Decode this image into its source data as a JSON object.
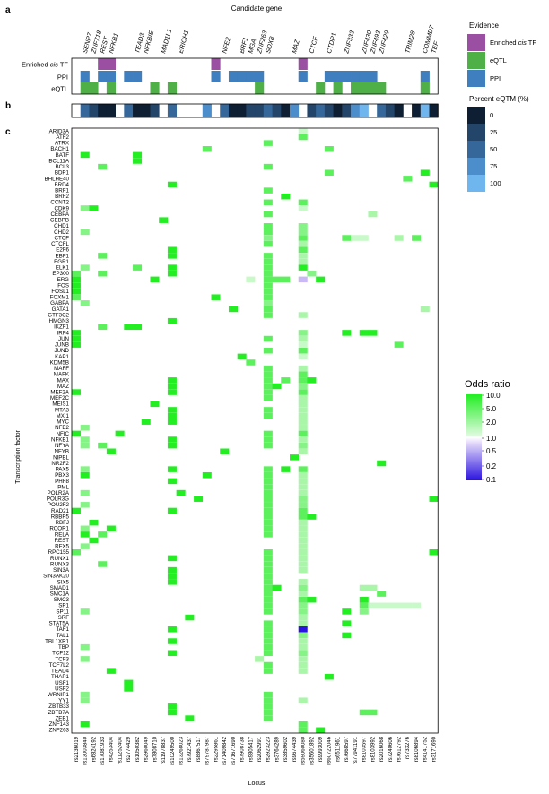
{
  "panel_labels": {
    "a": "a",
    "b": "b",
    "c": "c"
  },
  "top_axis_title": "Candidate gene",
  "genes": [
    {
      "name": "SENP7",
      "col": 1
    },
    {
      "name": "ZNF718",
      "col": 2
    },
    {
      "name": "REST",
      "col": 3
    },
    {
      "name": "NFKB1",
      "col": 4
    },
    {
      "name": "TEAD3",
      "col": 7
    },
    {
      "name": "NFKBIE",
      "col": 8
    },
    {
      "name": "MAD1L1",
      "col": 10
    },
    {
      "name": "ERICH1",
      "col": 12
    },
    {
      "name": "NFE2",
      "col": 17
    },
    {
      "name": "BRF1",
      "col": 19
    },
    {
      "name": "MGA",
      "col": 20
    },
    {
      "name": "ZNF263",
      "col": 21
    },
    {
      "name": "SOX8",
      "col": 22
    },
    {
      "name": "MAZ",
      "col": 25
    },
    {
      "name": "CTCF",
      "col": 27
    },
    {
      "name": "CTDP1",
      "col": 29
    },
    {
      "name": "ZNF333",
      "col": 31
    },
    {
      "name": "ZNF430",
      "col": 33
    },
    {
      "name": "ZNF493",
      "col": 34
    },
    {
      "name": "ZNF429",
      "col": 35
    },
    {
      "name": "TRIM28",
      "col": 38
    },
    {
      "name": "COMMD7",
      "col": 40
    },
    {
      "name": "TEF",
      "col": 41
    }
  ],
  "evidence_rows": [
    "Enriched cis TF",
    "PPI",
    "eQTL"
  ],
  "evidence": {
    "Enriched cis TF": [
      3,
      4,
      16,
      26
    ],
    "PPI": [
      1,
      3,
      4,
      6,
      7,
      16,
      18,
      19,
      20,
      21,
      26,
      29,
      30,
      31,
      32,
      33,
      34,
      40
    ],
    "eQTL": [
      1,
      2,
      4,
      9,
      11,
      21,
      28,
      30,
      32,
      33,
      34,
      35,
      40
    ]
  },
  "eqtm": [
    null,
    50,
    25,
    0,
    0,
    null,
    50,
    0,
    0,
    25,
    null,
    50,
    null,
    null,
    null,
    75,
    null,
    50,
    0,
    0,
    25,
    25,
    50,
    25,
    0,
    75,
    null,
    25,
    50,
    25,
    0,
    25,
    75,
    100,
    null,
    50,
    25,
    0,
    null,
    0,
    100,
    0
  ],
  "ylabel": "Transcription factor",
  "xlabel": "Locus",
  "tfs": [
    "ARID3A",
    "ATF2",
    "ATRX",
    "BACH1",
    "BATF",
    "BCL11A",
    "BCL3",
    "BDP1",
    "BHLHE40",
    "BRD4",
    "BRF1",
    "BRF2",
    "CCNT2",
    "CDK9",
    "CEBPA",
    "CEBPB",
    "CHD1",
    "CHD2",
    "CTCF",
    "CTCFL",
    "E2F6",
    "EBF1",
    "EGR1",
    "ELK1",
    "EP300",
    "ERG",
    "FOS",
    "FOSL1",
    "FOXM1",
    "GABPA",
    "GATA1",
    "GTF3C2",
    "HMGN3",
    "IKZF1",
    "IRF4",
    "JUN",
    "JUNB",
    "JUND",
    "KAP1",
    "KDM5B",
    "MAFF",
    "MAFK",
    "MAX",
    "MAZ",
    "MEF2A",
    "MEF2C",
    "MEIS1",
    "MTA3",
    "MXI1",
    "MYC",
    "NFE2",
    "NFIC",
    "NFKB1",
    "NFYA",
    "NFYB",
    "NIPBL",
    "NR2F2",
    "PAX5",
    "PBX3",
    "PHF8",
    "PML",
    "POLR2A",
    "POLR3G",
    "POU2F2",
    "RAD21",
    "RBBP5",
    "RBFJ",
    "RCOR1",
    "RELA",
    "REST",
    "RFX5",
    "RPC155",
    "RUNX1",
    "RUNX3",
    "SIN3A",
    "SIN3AK20",
    "SIX5",
    "SMAD1",
    "SMC1A",
    "SMC3",
    "SP1",
    "SP11",
    "SRF",
    "STAT5A",
    "TAF1",
    "TAL1",
    "TBL1XR1",
    "TBP",
    "TCF12",
    "TCF3",
    "TCF7L2",
    "TEAD4",
    "THAP1",
    "USF1",
    "USF2",
    "WRNIP1",
    "YY1",
    "ZBTB33",
    "ZBTB7A",
    "ZEB1",
    "ZNF143",
    "ZNF263"
  ],
  "loci": [
    "rs2136019",
    "rs13003840",
    "rs6824192",
    "rs17081933",
    "rs4253404",
    "rs11252404",
    "rs2774429",
    "rs1050382",
    "rs2960049",
    "rs7808710",
    "rs11978837",
    "rs10249500",
    "rs13268023",
    "rs7921437",
    "rs8867517",
    "rs79787987",
    "rs2295861",
    "rs71409842",
    "rs71671690",
    "rs7908738",
    "rs9805417",
    "rs2062991",
    "rs2923223",
    "rs3764289",
    "rs3859602",
    "rs9674439",
    "rs59060080",
    "rs35601892",
    "rs9993009",
    "rs60722046",
    "rs6511961",
    "rs7668597",
    "rs77941191",
    "rs8103597",
    "rs8103992",
    "rs2016068",
    "rs7240606",
    "rs7612792",
    "rs733276",
    "rs8106894",
    "rs4141752",
    "rs3171690"
  ],
  "chart_data": {
    "type": "heatmap",
    "title": "",
    "xlabel": "Locus",
    "ylabel": "Transcription factor",
    "cells": [
      [
        0,
        26,
        2
      ],
      [
        1,
        26,
        5
      ],
      [
        2,
        22,
        5
      ],
      [
        3,
        15,
        5
      ],
      [
        3,
        29,
        5
      ],
      [
        4,
        1,
        10
      ],
      [
        4,
        7,
        10
      ],
      [
        5,
        7,
        10
      ],
      [
        6,
        3,
        5
      ],
      [
        6,
        22,
        5
      ],
      [
        7,
        29,
        5
      ],
      [
        7,
        40,
        10
      ],
      [
        8,
        38,
        5
      ],
      [
        9,
        11,
        10
      ],
      [
        9,
        41,
        10
      ],
      [
        10,
        22,
        5
      ],
      [
        11,
        24,
        10
      ],
      [
        12,
        22,
        5
      ],
      [
        12,
        26,
        5
      ],
      [
        13,
        1,
        4
      ],
      [
        13,
        2,
        10
      ],
      [
        13,
        26,
        2.5
      ],
      [
        14,
        22,
        5
      ],
      [
        14,
        34,
        3
      ],
      [
        15,
        10,
        10
      ],
      [
        16,
        22,
        5
      ],
      [
        16,
        26,
        4
      ],
      [
        17,
        1,
        4
      ],
      [
        17,
        22,
        5
      ],
      [
        17,
        26,
        4
      ],
      [
        18,
        22,
        4
      ],
      [
        18,
        26,
        5
      ],
      [
        18,
        31,
        5
      ],
      [
        18,
        32,
        2.5
      ],
      [
        18,
        33,
        2.5
      ],
      [
        18,
        37,
        3
      ],
      [
        18,
        39,
        5
      ],
      [
        19,
        22,
        5
      ],
      [
        19,
        26,
        3
      ],
      [
        20,
        11,
        10
      ],
      [
        20,
        26,
        5
      ],
      [
        21,
        3,
        5
      ],
      [
        21,
        11,
        10
      ],
      [
        21,
        22,
        5
      ],
      [
        21,
        26,
        3
      ],
      [
        22,
        22,
        5
      ],
      [
        22,
        26,
        3
      ],
      [
        23,
        1,
        4
      ],
      [
        23,
        7,
        5
      ],
      [
        23,
        11,
        10
      ],
      [
        23,
        22,
        5
      ],
      [
        23,
        26,
        10
      ],
      [
        24,
        0,
        5
      ],
      [
        24,
        3,
        5
      ],
      [
        24,
        11,
        10
      ],
      [
        24,
        22,
        5
      ],
      [
        24,
        27,
        4
      ],
      [
        25,
        0,
        10
      ],
      [
        25,
        9,
        10
      ],
      [
        25,
        20,
        2.5
      ],
      [
        25,
        22,
        5
      ],
      [
        25,
        23,
        5
      ],
      [
        25,
        24,
        5
      ],
      [
        25,
        26,
        0.6
      ],
      [
        25,
        28,
        10
      ],
      [
        26,
        0,
        10
      ],
      [
        26,
        22,
        5
      ],
      [
        27,
        0,
        10
      ],
      [
        27,
        22,
        5
      ],
      [
        28,
        0,
        5
      ],
      [
        28,
        16,
        10
      ],
      [
        28,
        22,
        5
      ],
      [
        29,
        1,
        4
      ],
      [
        29,
        22,
        4
      ],
      [
        30,
        18,
        10
      ],
      [
        30,
        22,
        5
      ],
      [
        30,
        40,
        3
      ],
      [
        31,
        22,
        5
      ],
      [
        31,
        26,
        3
      ],
      [
        32,
        11,
        10
      ],
      [
        33,
        3,
        5
      ],
      [
        33,
        6,
        10
      ],
      [
        33,
        7,
        10
      ],
      [
        34,
        0,
        10
      ],
      [
        34,
        26,
        4
      ],
      [
        34,
        31,
        10
      ],
      [
        34,
        33,
        10
      ],
      [
        34,
        34,
        10
      ],
      [
        35,
        0,
        10
      ],
      [
        35,
        22,
        5
      ],
      [
        35,
        26,
        3
      ],
      [
        36,
        0,
        10
      ],
      [
        36,
        26,
        2
      ],
      [
        36,
        37,
        5
      ],
      [
        37,
        22,
        5
      ],
      [
        37,
        26,
        5
      ],
      [
        38,
        19,
        10
      ],
      [
        38,
        26,
        2
      ],
      [
        39,
        20,
        5
      ],
      [
        40,
        22,
        5
      ],
      [
        40,
        26,
        3
      ],
      [
        41,
        22,
        5
      ],
      [
        41,
        26,
        5
      ],
      [
        42,
        11,
        10
      ],
      [
        42,
        22,
        5
      ],
      [
        42,
        24,
        5
      ],
      [
        42,
        26,
        5
      ],
      [
        42,
        27,
        10
      ],
      [
        43,
        11,
        10
      ],
      [
        43,
        22,
        5
      ],
      [
        43,
        23,
        10
      ],
      [
        43,
        26,
        4
      ],
      [
        44,
        0,
        10
      ],
      [
        44,
        11,
        10
      ],
      [
        44,
        22,
        5
      ],
      [
        44,
        26,
        5
      ],
      [
        45,
        22,
        5
      ],
      [
        45,
        26,
        3
      ],
      [
        46,
        9,
        10
      ],
      [
        46,
        26,
        3
      ],
      [
        47,
        11,
        10
      ],
      [
        47,
        22,
        5
      ],
      [
        47,
        26,
        3
      ],
      [
        48,
        11,
        10
      ],
      [
        48,
        22,
        5
      ],
      [
        48,
        26,
        3
      ],
      [
        49,
        8,
        10
      ],
      [
        49,
        11,
        10
      ],
      [
        49,
        26,
        3
      ],
      [
        50,
        1,
        4
      ],
      [
        50,
        26,
        3
      ],
      [
        51,
        0,
        10
      ],
      [
        51,
        5,
        10
      ],
      [
        51,
        22,
        5
      ],
      [
        51,
        26,
        5
      ],
      [
        52,
        1,
        4
      ],
      [
        52,
        11,
        10
      ],
      [
        52,
        22,
        5
      ],
      [
        52,
        26,
        3
      ],
      [
        53,
        1,
        4
      ],
      [
        53,
        3,
        5
      ],
      [
        53,
        11,
        10
      ],
      [
        53,
        22,
        5
      ],
      [
        53,
        26,
        4
      ],
      [
        54,
        4,
        10
      ],
      [
        54,
        17,
        10
      ],
      [
        54,
        26,
        3
      ],
      [
        55,
        25,
        10
      ],
      [
        56,
        35,
        10
      ],
      [
        57,
        1,
        4
      ],
      [
        57,
        11,
        10
      ],
      [
        57,
        22,
        5
      ],
      [
        57,
        24,
        10
      ],
      [
        57,
        26,
        5
      ],
      [
        58,
        1,
        10
      ],
      [
        58,
        15,
        10
      ],
      [
        58,
        22,
        5
      ],
      [
        58,
        26,
        3
      ],
      [
        59,
        11,
        10
      ],
      [
        59,
        22,
        5
      ],
      [
        59,
        26,
        3
      ],
      [
        60,
        22,
        5
      ],
      [
        60,
        26,
        3
      ],
      [
        61,
        1,
        4
      ],
      [
        61,
        12,
        10
      ],
      [
        61,
        22,
        5
      ],
      [
        61,
        26,
        3
      ],
      [
        62,
        14,
        10
      ],
      [
        62,
        22,
        5
      ],
      [
        62,
        26,
        4
      ],
      [
        62,
        41,
        10
      ],
      [
        63,
        1,
        4
      ],
      [
        63,
        22,
        5
      ],
      [
        63,
        26,
        4
      ],
      [
        64,
        0,
        10
      ],
      [
        64,
        11,
        10
      ],
      [
        64,
        22,
        5
      ],
      [
        64,
        26,
        5
      ],
      [
        65,
        22,
        5
      ],
      [
        65,
        26,
        5
      ],
      [
        65,
        27,
        10
      ],
      [
        66,
        2,
        10
      ],
      [
        66,
        22,
        5
      ],
      [
        66,
        26,
        3
      ],
      [
        67,
        1,
        4
      ],
      [
        67,
        4,
        10
      ],
      [
        67,
        22,
        5
      ],
      [
        67,
        26,
        3
      ],
      [
        68,
        1,
        10
      ],
      [
        68,
        3,
        5
      ],
      [
        68,
        22,
        5
      ],
      [
        68,
        26,
        3
      ],
      [
        69,
        2,
        10
      ],
      [
        69,
        26,
        3
      ],
      [
        70,
        1,
        4
      ],
      [
        70,
        26,
        3
      ],
      [
        71,
        0,
        5
      ],
      [
        71,
        22,
        5
      ],
      [
        71,
        26,
        3
      ],
      [
        71,
        41,
        10
      ],
      [
        72,
        11,
        10
      ],
      [
        72,
        22,
        5
      ],
      [
        72,
        26,
        3
      ],
      [
        73,
        3,
        5
      ],
      [
        73,
        22,
        5
      ],
      [
        73,
        26,
        3
      ],
      [
        74,
        11,
        10
      ],
      [
        74,
        22,
        5
      ],
      [
        74,
        26,
        3
      ],
      [
        75,
        11,
        10
      ],
      [
        75,
        22,
        5
      ],
      [
        76,
        11,
        10
      ],
      [
        76,
        22,
        5
      ],
      [
        76,
        26,
        3
      ],
      [
        77,
        22,
        5
      ],
      [
        77,
        23,
        10
      ],
      [
        77,
        26,
        4
      ],
      [
        77,
        33,
        3
      ],
      [
        77,
        34,
        3
      ],
      [
        78,
        22,
        5
      ],
      [
        78,
        26,
        3
      ],
      [
        78,
        35,
        5
      ],
      [
        79,
        22,
        5
      ],
      [
        79,
        26,
        5
      ],
      [
        79,
        27,
        10
      ],
      [
        79,
        33,
        10
      ],
      [
        80,
        22,
        5
      ],
      [
        80,
        26,
        4
      ],
      [
        80,
        33,
        5
      ],
      [
        80,
        34,
        2.5
      ],
      [
        80,
        35,
        2.5
      ],
      [
        80,
        36,
        2.5
      ],
      [
        80,
        37,
        2.5
      ],
      [
        80,
        38,
        2.5
      ],
      [
        80,
        39,
        2.5
      ],
      [
        81,
        1,
        4
      ],
      [
        81,
        22,
        5
      ],
      [
        81,
        26,
        4
      ],
      [
        81,
        31,
        10
      ],
      [
        81,
        33,
        4
      ],
      [
        82,
        13,
        10
      ],
      [
        82,
        26,
        3
      ],
      [
        83,
        22,
        5
      ],
      [
        83,
        26,
        3
      ],
      [
        83,
        31,
        10
      ],
      [
        84,
        11,
        10
      ],
      [
        84,
        22,
        5
      ],
      [
        84,
        26,
        0.1
      ],
      [
        85,
        22,
        5
      ],
      [
        85,
        26,
        4
      ],
      [
        85,
        31,
        10
      ],
      [
        86,
        11,
        10
      ],
      [
        86,
        22,
        5
      ],
      [
        86,
        26,
        3
      ],
      [
        87,
        1,
        4
      ],
      [
        87,
        22,
        5
      ],
      [
        87,
        26,
        3
      ],
      [
        88,
        11,
        10
      ],
      [
        88,
        22,
        5
      ],
      [
        88,
        26,
        4
      ],
      [
        89,
        1,
        4
      ],
      [
        89,
        21,
        3
      ],
      [
        89,
        26,
        3
      ],
      [
        90,
        22,
        5
      ],
      [
        90,
        26,
        3
      ],
      [
        91,
        4,
        10
      ],
      [
        91,
        22,
        5
      ],
      [
        91,
        26,
        3
      ],
      [
        92,
        29,
        10
      ],
      [
        93,
        6,
        10
      ],
      [
        94,
        6,
        10
      ],
      [
        95,
        1,
        4
      ],
      [
        95,
        22,
        5
      ],
      [
        96,
        1,
        4
      ],
      [
        96,
        22,
        5
      ],
      [
        96,
        26,
        3
      ],
      [
        97,
        11,
        10
      ],
      [
        97,
        22,
        5
      ],
      [
        98,
        11,
        10
      ],
      [
        98,
        22,
        5
      ],
      [
        98,
        33,
        5
      ],
      [
        98,
        34,
        5
      ],
      [
        99,
        13,
        10
      ],
      [
        99,
        22,
        5
      ],
      [
        100,
        1,
        10
      ],
      [
        100,
        26,
        5
      ],
      [
        101,
        26,
        5
      ],
      [
        101,
        28,
        10
      ]
    ],
    "colorbar": {
      "title": "Odds ratio",
      "ticks": [
        "10.0",
        "5.0",
        "2.0",
        "1.0",
        "0.5",
        "0.2",
        "0.1"
      ]
    },
    "evidence_legend": {
      "title": "Evidence",
      "items": [
        {
          "label": "Enriched ",
          "italic": "cis",
          "suffix": " TF",
          "color": "#9a4fa3"
        },
        {
          "label": "eQTL",
          "color": "#4fb047"
        },
        {
          "label": "PPI",
          "color": "#3f7fbf"
        }
      ]
    },
    "eqtm_legend": {
      "title": "Percent eQTM (%)",
      "ticks": [
        "0",
        "25",
        "50",
        "75",
        "100"
      ],
      "colors": [
        "#0e1f33",
        "#23456a",
        "#36679a",
        "#4c8dcb",
        "#6fb6ef"
      ]
    }
  }
}
